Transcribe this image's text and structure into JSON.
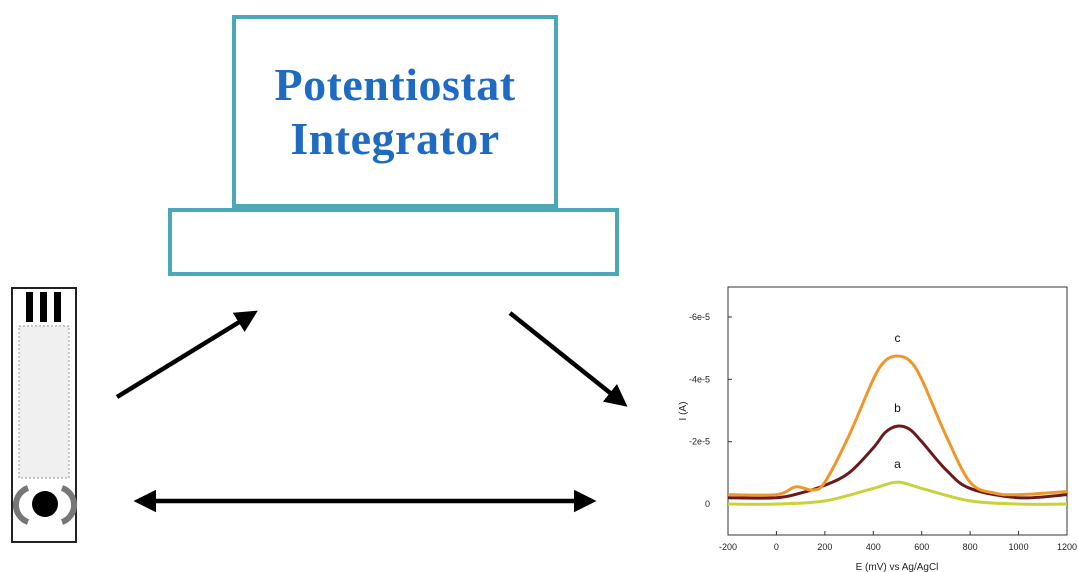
{
  "instrument": {
    "line1": "Potentiostat",
    "line2": "Integrator"
  },
  "colors": {
    "box_border": "#4ba9b6",
    "title_text": "#1f6bc1",
    "arrow": "#000000"
  },
  "chart_data": {
    "type": "line",
    "xlabel": "E (mV) vs Ag/AgCl",
    "ylabel": "I (A)",
    "xlim": [
      -200,
      1200
    ],
    "ylim": [
      0,
      6.8e-05
    ],
    "y_inverted": true,
    "x_ticks": [
      "-200",
      "0",
      "200",
      "400",
      "600",
      "800",
      "1000",
      "1200"
    ],
    "y_ticks": [
      "0",
      "-2e-5",
      "-4e-5",
      "-6e-5"
    ],
    "series": [
      {
        "label": "a",
        "color": "#c8d23a",
        "points": [
          [
            -200,
            0.0
          ],
          [
            0,
            0.0
          ],
          [
            200,
            1e-06
          ],
          [
            400,
            5e-06
          ],
          [
            500,
            7e-06
          ],
          [
            600,
            5e-06
          ],
          [
            800,
            1e-06
          ],
          [
            1000,
            0.0
          ],
          [
            1200,
            0.0
          ]
        ]
      },
      {
        "label": "b",
        "color": "#6b1a1a",
        "points": [
          [
            -200,
            2e-06
          ],
          [
            0,
            2e-06
          ],
          [
            100,
            3.5e-06
          ],
          [
            200,
            6e-06
          ],
          [
            300,
            1e-05
          ],
          [
            400,
            1.8e-05
          ],
          [
            450,
            2.3e-05
          ],
          [
            500,
            2.5e-05
          ],
          [
            550,
            2.4e-05
          ],
          [
            600,
            2e-05
          ],
          [
            700,
            1.1e-05
          ],
          [
            800,
            5e-06
          ],
          [
            1000,
            2e-06
          ],
          [
            1200,
            3e-06
          ]
        ]
      },
      {
        "label": "c",
        "color": "#f0962a",
        "points": [
          [
            -200,
            3e-06
          ],
          [
            0,
            3e-06
          ],
          [
            80,
            5.5e-06
          ],
          [
            150,
            4.5e-06
          ],
          [
            200,
            7e-06
          ],
          [
            300,
            2.2e-05
          ],
          [
            400,
            4e-05
          ],
          [
            450,
            4.6e-05
          ],
          [
            500,
            4.75e-05
          ],
          [
            550,
            4.6e-05
          ],
          [
            600,
            4e-05
          ],
          [
            700,
            2.2e-05
          ],
          [
            800,
            7e-06
          ],
          [
            900,
            3.5e-06
          ],
          [
            1000,
            3e-06
          ],
          [
            1200,
            4e-06
          ]
        ]
      }
    ]
  }
}
